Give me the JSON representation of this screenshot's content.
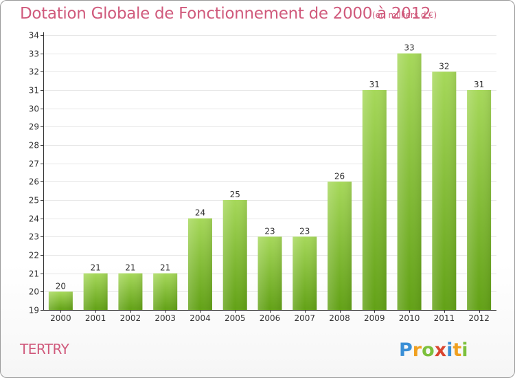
{
  "header": {
    "title": "Dotation Globale de Fonctionnement de 2000 à 2012",
    "subtitle": "(en milliers d'€)"
  },
  "footer": {
    "commune": "TERTRY",
    "logo_text": "Proxiti"
  },
  "colors": {
    "title": "#d05a7c",
    "bar_light": "#a6d85a",
    "bar_dark": "#62a116",
    "axis": "#333333",
    "grid": "#e6e6e6"
  },
  "chart_data": {
    "type": "bar",
    "title": "Dotation Globale de Fonctionnement de 2000 à 2012",
    "subtitle": "(en milliers d'€)",
    "categories": [
      "2000",
      "2001",
      "2002",
      "2003",
      "2004",
      "2005",
      "2006",
      "2007",
      "2008",
      "2009",
      "2010",
      "2011",
      "2012"
    ],
    "values": [
      20,
      21,
      21,
      21,
      24,
      25,
      23,
      23,
      26,
      31,
      33,
      32,
      31
    ],
    "ylim": [
      19,
      34
    ],
    "yticks": [
      19,
      20,
      21,
      22,
      23,
      24,
      25,
      26,
      27,
      28,
      29,
      30,
      31,
      32,
      33,
      34
    ],
    "xlabel": "",
    "ylabel": "",
    "grid": true,
    "data_labels": true
  }
}
